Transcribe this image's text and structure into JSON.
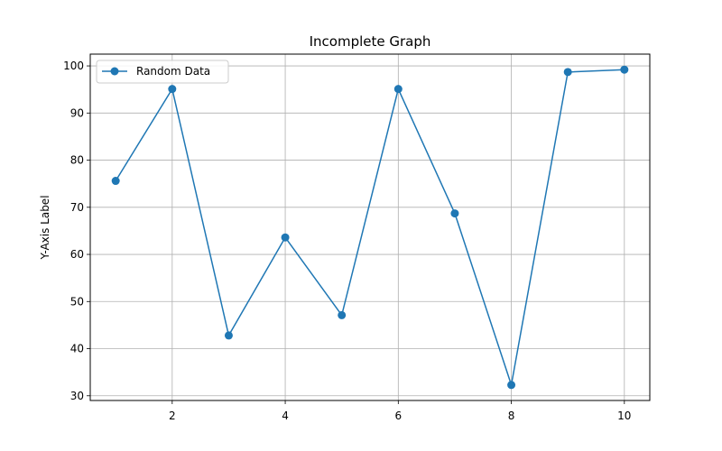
{
  "chart_data": {
    "type": "line",
    "title": "Incomplete Graph",
    "xlabel": "",
    "ylabel": "Y-Axis Label",
    "x": [
      1,
      2,
      3,
      4,
      5,
      6,
      7,
      8,
      9,
      10
    ],
    "series": [
      {
        "name": "Random Data",
        "values": [
          75.6,
          95.1,
          42.8,
          63.6,
          47.1,
          95.1,
          68.7,
          32.3,
          98.7,
          99.2
        ],
        "color": "#1f77b4",
        "marker": "circle"
      }
    ],
    "xlim": [
      0.55,
      10.45
    ],
    "ylim": [
      29,
      102.5
    ],
    "xticks": [
      2,
      4,
      6,
      8,
      10
    ],
    "yticks": [
      30,
      40,
      50,
      60,
      70,
      80,
      90,
      100
    ],
    "grid": true,
    "legend_position": "upper-left"
  }
}
